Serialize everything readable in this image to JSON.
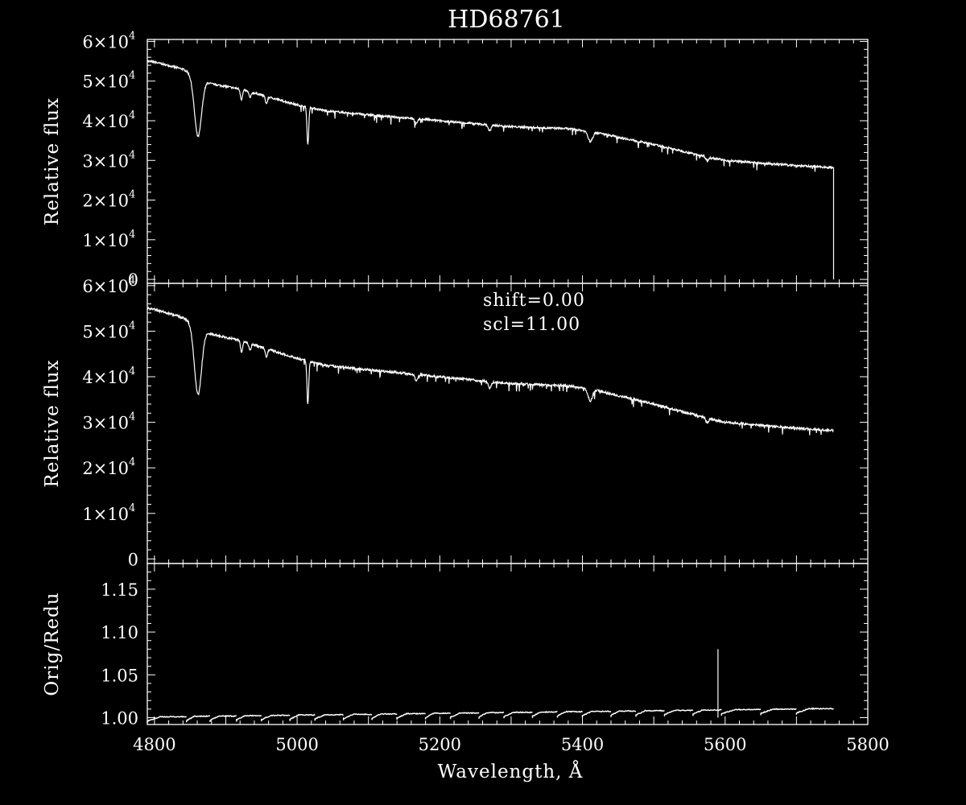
{
  "chart_data": {
    "title": "HD68761",
    "xlabel": "Wavelength, Å",
    "x_ticks": [
      4800,
      5000,
      5200,
      5400,
      5600,
      5800
    ],
    "xlim": [
      4790,
      5800
    ],
    "panels": [
      {
        "id": "top",
        "type": "line",
        "ylabel": "Relative flux",
        "ylim": [
          -1000,
          60500
        ],
        "y_ticks": [
          {
            "value": 0,
            "mant": "0",
            "exp": ""
          },
          {
            "value": 10000,
            "mant": "1×10",
            "exp": "4"
          },
          {
            "value": 20000,
            "mant": "2×10",
            "exp": "4"
          },
          {
            "value": 30000,
            "mant": "3×10",
            "exp": "4"
          },
          {
            "value": 40000,
            "mant": "4×10",
            "exp": "4"
          },
          {
            "value": 50000,
            "mant": "5×10",
            "exp": "4"
          },
          {
            "value": 60000,
            "mant": "6×10",
            "exp": "4"
          }
        ],
        "continuum": {
          "x": [
            4790,
            4800,
            4840,
            4880,
            4920,
            4960,
            5000,
            5040,
            5100,
            5200,
            5300,
            5380,
            5400,
            5420,
            5500,
            5560,
            5600,
            5660,
            5700,
            5750
          ],
          "y": [
            55000,
            54800,
            53000,
            49300,
            48000,
            46000,
            44000,
            42500,
            41500,
            40000,
            38500,
            38000,
            37500,
            37000,
            34000,
            31500,
            30000,
            29200,
            28700,
            28200
          ]
        },
        "lines": [
          {
            "x": 4861,
            "depth": 15000,
            "width": 5
          },
          {
            "x": 4922,
            "depth": 2500,
            "width": 1.5
          },
          {
            "x": 4934,
            "depth": 1500,
            "width": 1.5
          },
          {
            "x": 4957,
            "depth": 1800,
            "width": 1.5
          },
          {
            "x": 5015,
            "depth": 9500,
            "width": 1.2
          },
          {
            "x": 5167,
            "depth": 1200,
            "width": 2
          },
          {
            "x": 5270,
            "depth": 1500,
            "width": 2
          },
          {
            "x": 5411,
            "depth": 2500,
            "width": 3
          },
          {
            "x": 5575,
            "depth": 1000,
            "width": 2
          }
        ],
        "hbeta_spike": {
          "x": 4923,
          "y": 34800
        },
        "drop_x": 5752
      },
      {
        "id": "middle",
        "type": "line",
        "ylabel": "Relative flux",
        "ylim": [
          -1000,
          60500
        ],
        "y_ticks": [
          {
            "value": 0,
            "mant": "0",
            "exp": ""
          },
          {
            "value": 10000,
            "mant": "1×10",
            "exp": "4"
          },
          {
            "value": 20000,
            "mant": "2×10",
            "exp": "4"
          },
          {
            "value": 30000,
            "mant": "3×10",
            "exp": "4"
          },
          {
            "value": 40000,
            "mant": "4×10",
            "exp": "4"
          },
          {
            "value": 50000,
            "mant": "5×10",
            "exp": "4"
          },
          {
            "value": 60000,
            "mant": "6×10",
            "exp": "4"
          }
        ],
        "annotations": [
          "shift=0.00",
          "scl=11.00"
        ]
      },
      {
        "id": "bottom",
        "type": "line",
        "ylabel": "Orig/Redu",
        "ylim": [
          0.992,
          1.18
        ],
        "y_ticks": [
          {
            "value": 1.0,
            "mant": "1.00",
            "exp": ""
          },
          {
            "value": 1.05,
            "mant": "1.05",
            "exp": ""
          },
          {
            "value": 1.1,
            "mant": "1.10",
            "exp": ""
          },
          {
            "value": 1.15,
            "mant": "1.15",
            "exp": ""
          }
        ],
        "segment_starts": [
          4790,
          4845,
          4878,
          4915,
          4950,
          4990,
          5025,
          5065,
          5105,
          5140,
          5180,
          5215,
          5255,
          5290,
          5330,
          5365,
          5400,
          5440,
          5475,
          5515,
          5555,
          5595,
          5650,
          5700,
          5752
        ],
        "level": {
          "x": [
            4790,
            5752
          ],
          "y": [
            1.0,
            1.01
          ]
        },
        "spike": {
          "x": 5590,
          "y": 1.08
        }
      }
    ]
  }
}
